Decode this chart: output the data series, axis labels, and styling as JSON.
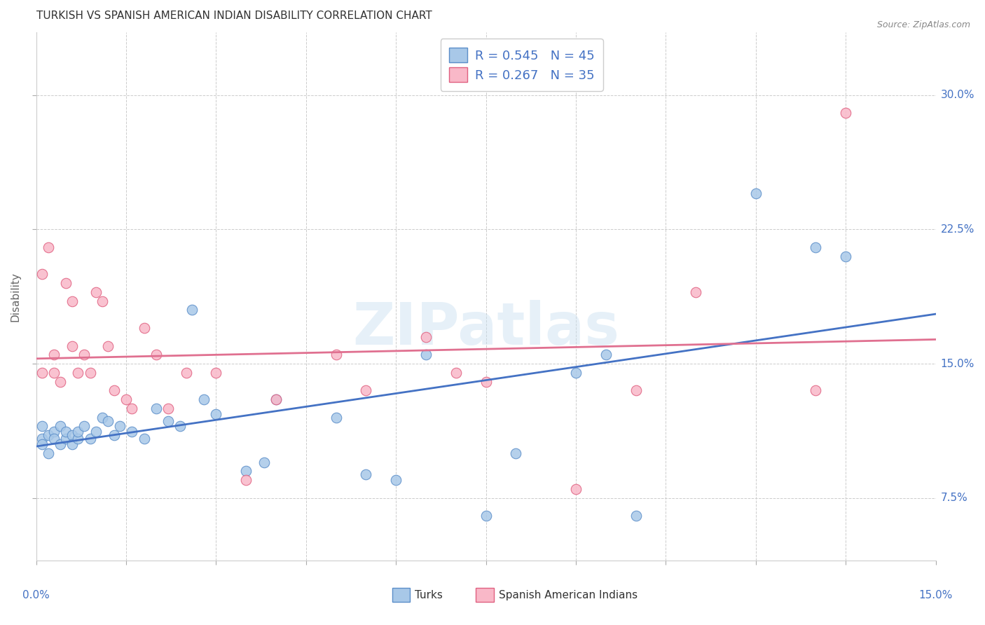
{
  "title": "TURKISH VS SPANISH AMERICAN INDIAN DISABILITY CORRELATION CHART",
  "source": "Source: ZipAtlas.com",
  "ylabel": "Disability",
  "ytick_labels": [
    "7.5%",
    "15.0%",
    "22.5%",
    "30.0%"
  ],
  "ytick_values": [
    0.075,
    0.15,
    0.225,
    0.3
  ],
  "xlim": [
    0.0,
    0.15
  ],
  "ylim": [
    0.04,
    0.335
  ],
  "blue_scatter_color": "#a8c8e8",
  "blue_edge_color": "#5b8ec9",
  "pink_scatter_color": "#f9b8c8",
  "pink_edge_color": "#e06080",
  "blue_line_color": "#4472c4",
  "pink_line_color": "#e07090",
  "legend_text_color": "#4472c4",
  "watermark": "ZIPatlas",
  "legend1_label": "R = 0.545   N = 45",
  "legend2_label": "R = 0.267   N = 35",
  "bottom_label1": "Turks",
  "bottom_label2": "Spanish American Indians",
  "turks_x": [
    0.001,
    0.001,
    0.001,
    0.002,
    0.002,
    0.003,
    0.003,
    0.004,
    0.004,
    0.005,
    0.005,
    0.006,
    0.006,
    0.007,
    0.007,
    0.008,
    0.009,
    0.01,
    0.011,
    0.012,
    0.013,
    0.014,
    0.016,
    0.018,
    0.02,
    0.022,
    0.024,
    0.026,
    0.028,
    0.03,
    0.035,
    0.038,
    0.04,
    0.05,
    0.055,
    0.06,
    0.065,
    0.075,
    0.08,
    0.09,
    0.095,
    0.1,
    0.12,
    0.13,
    0.135
  ],
  "turks_y": [
    0.108,
    0.115,
    0.105,
    0.11,
    0.1,
    0.112,
    0.108,
    0.105,
    0.115,
    0.108,
    0.112,
    0.11,
    0.105,
    0.108,
    0.112,
    0.115,
    0.108,
    0.112,
    0.12,
    0.118,
    0.11,
    0.115,
    0.112,
    0.108,
    0.125,
    0.118,
    0.115,
    0.18,
    0.13,
    0.122,
    0.09,
    0.095,
    0.13,
    0.12,
    0.088,
    0.085,
    0.155,
    0.065,
    0.1,
    0.145,
    0.155,
    0.065,
    0.245,
    0.215,
    0.21
  ],
  "spanish_x": [
    0.001,
    0.001,
    0.002,
    0.003,
    0.003,
    0.004,
    0.005,
    0.006,
    0.006,
    0.007,
    0.008,
    0.009,
    0.01,
    0.011,
    0.012,
    0.013,
    0.015,
    0.016,
    0.018,
    0.02,
    0.022,
    0.025,
    0.03,
    0.035,
    0.04,
    0.05,
    0.055,
    0.065,
    0.07,
    0.075,
    0.09,
    0.1,
    0.11,
    0.13,
    0.135
  ],
  "spanish_y": [
    0.145,
    0.2,
    0.215,
    0.145,
    0.155,
    0.14,
    0.195,
    0.185,
    0.16,
    0.145,
    0.155,
    0.145,
    0.19,
    0.185,
    0.16,
    0.135,
    0.13,
    0.125,
    0.17,
    0.155,
    0.125,
    0.145,
    0.145,
    0.085,
    0.13,
    0.155,
    0.135,
    0.165,
    0.145,
    0.14,
    0.08,
    0.135,
    0.19,
    0.135,
    0.29
  ]
}
